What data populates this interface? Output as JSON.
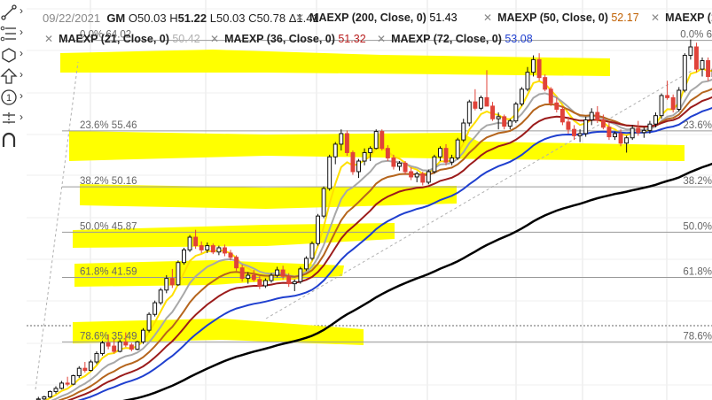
{
  "header": {
    "date": "09/22/2021",
    "symbol": "GM",
    "open_label": "O",
    "open": "50.03",
    "high_label": "H",
    "high": "51.22",
    "low_label": "L",
    "low": "50.03",
    "close_label": "C",
    "close": "50.78",
    "change_label": "Δ",
    "change": "1.41"
  },
  "moving_averages": [
    {
      "name": "MAEXP (200, Close, 0)",
      "value": "51.43",
      "color": "#000000"
    },
    {
      "name": "MAEXP (50, Close, 0)",
      "value": "52.17",
      "color": "#c06000"
    },
    {
      "name": "MAEXP (1",
      "value": "",
      "color": "#a0a0a0"
    },
    {
      "name": "MAEXP (21, Close, 0)",
      "value": "50.42",
      "color": "#b0b0b0"
    },
    {
      "name": "MAEXP (36, Close, 0)",
      "value": "51.32",
      "color": "#b81c1c"
    },
    {
      "name": "MAEXP (72, Close, 0)",
      "value": "53.08",
      "color": "#1f3fcf"
    }
  ],
  "toolbar": {
    "tools": [
      "trendline-icon",
      "fibonacci-icon",
      "shapes-icon",
      "arrow-icon",
      "annotation-icon",
      "measure-icon",
      "magnet-icon"
    ]
  },
  "colors": {
    "highlight": "#ffff00",
    "candle_up": "#111111",
    "candle_down": "#e0433a",
    "fib_line": "#9a9a9a",
    "ma_black": "#000000",
    "ma_blue": "#1f3fcf",
    "ma_darkred": "#9b1b1b",
    "ma_brown": "#b5651d",
    "ma_gray": "#a8a8a8",
    "ma_yellow": "#ffe000"
  },
  "chart_data": {
    "type": "candlestick",
    "ylim": [
      30,
      67
    ],
    "fib_levels": [
      {
        "left_label": "0.0% 64.02",
        "right_label": "0.0% 6",
        "value": 64.02
      },
      {
        "left_label": "23.6% 55.46",
        "right_label": "23.6%",
        "value": 55.46
      },
      {
        "left_label": "38.2% 50.16",
        "right_label": "38.2%",
        "value": 50.16
      },
      {
        "left_label": "50.0% 45.87",
        "right_label": "50.0%",
        "value": 45.87
      },
      {
        "left_label": "61.8% 41.59",
        "right_label": "61.8%",
        "value": 41.59
      },
      {
        "left_label": "78.6% 35.49",
        "right_label": "78.6%",
        "value": 35.49
      }
    ],
    "candles": [
      [
        30.0,
        30.3,
        29.9,
        30.1
      ],
      [
        30.1,
        30.4,
        30.0,
        30.3
      ],
      [
        30.3,
        30.9,
        30.2,
        30.8
      ],
      [
        30.8,
        31.3,
        30.6,
        31.1
      ],
      [
        31.1,
        31.8,
        31.0,
        31.6
      ],
      [
        31.6,
        32.2,
        31.3,
        31.5
      ],
      [
        31.5,
        32.4,
        31.4,
        32.3
      ],
      [
        32.3,
        33.2,
        32.1,
        33.0
      ],
      [
        33.0,
        33.6,
        32.6,
        32.8
      ],
      [
        32.8,
        33.8,
        32.7,
        33.6
      ],
      [
        33.6,
        34.6,
        33.4,
        34.4
      ],
      [
        34.4,
        35.6,
        34.2,
        35.4
      ],
      [
        35.4,
        36.2,
        34.8,
        35.1
      ],
      [
        35.1,
        35.8,
        34.4,
        34.6
      ],
      [
        34.6,
        35.7,
        34.5,
        35.5
      ],
      [
        35.5,
        36.4,
        35.0,
        35.2
      ],
      [
        35.2,
        35.4,
        34.6,
        34.8
      ],
      [
        34.8,
        35.6,
        34.7,
        35.5
      ],
      [
        35.5,
        36.8,
        35.3,
        36.6
      ],
      [
        36.6,
        38.3,
        36.4,
        38.1
      ],
      [
        38.1,
        39.4,
        37.9,
        39.2
      ],
      [
        39.2,
        40.6,
        39.0,
        40.4
      ],
      [
        40.4,
        41.8,
        40.1,
        41.5
      ],
      [
        41.5,
        42.4,
        40.6,
        40.9
      ],
      [
        40.9,
        43.2,
        40.8,
        43.0
      ],
      [
        43.0,
        44.4,
        42.8,
        44.2
      ],
      [
        44.2,
        45.6,
        44.0,
        45.4
      ],
      [
        45.4,
        46.1,
        44.3,
        44.6
      ],
      [
        44.6,
        45.0,
        43.9,
        44.2
      ],
      [
        44.2,
        44.9,
        43.9,
        44.6
      ],
      [
        44.6,
        44.8,
        43.8,
        44.0
      ],
      [
        44.0,
        44.6,
        43.7,
        44.4
      ],
      [
        44.4,
        44.7,
        43.6,
        43.9
      ],
      [
        43.9,
        44.2,
        43.2,
        43.5
      ],
      [
        43.5,
        43.7,
        42.2,
        42.5
      ],
      [
        42.5,
        42.8,
        41.2,
        41.5
      ],
      [
        41.5,
        42.1,
        41.0,
        41.8
      ],
      [
        41.8,
        42.3,
        41.2,
        41.4
      ],
      [
        41.4,
        41.7,
        40.5,
        40.8
      ],
      [
        40.8,
        41.5,
        40.6,
        41.3
      ],
      [
        41.3,
        42.0,
        41.1,
        41.8
      ],
      [
        41.8,
        42.6,
        41.6,
        42.3
      ],
      [
        42.3,
        42.7,
        41.4,
        41.7
      ],
      [
        41.7,
        42.0,
        40.7,
        41.0
      ],
      [
        41.0,
        41.4,
        40.3,
        41.2
      ],
      [
        41.2,
        42.6,
        41.0,
        42.4
      ],
      [
        42.4,
        43.6,
        42.2,
        43.4
      ],
      [
        43.4,
        45.0,
        43.2,
        44.8
      ],
      [
        44.8,
        47.6,
        44.6,
        47.4
      ],
      [
        47.4,
        50.2,
        47.2,
        50.0
      ],
      [
        50.0,
        53.2,
        49.8,
        53.0
      ],
      [
        53.0,
        54.4,
        52.3,
        54.2
      ],
      [
        54.2,
        55.6,
        53.6,
        55.2
      ],
      [
        55.2,
        55.5,
        53.1,
        53.4
      ],
      [
        53.4,
        53.6,
        51.3,
        51.6
      ],
      [
        51.6,
        52.8,
        51.0,
        52.6
      ],
      [
        52.6,
        53.8,
        52.2,
        53.4
      ],
      [
        53.4,
        54.0,
        52.6,
        53.8
      ],
      [
        53.8,
        55.6,
        53.7,
        55.4
      ],
      [
        55.4,
        55.6,
        53.6,
        53.8
      ],
      [
        53.8,
        54.1,
        52.6,
        52.9
      ],
      [
        52.9,
        53.2,
        51.8,
        52.1
      ],
      [
        52.1,
        52.6,
        51.7,
        52.4
      ],
      [
        52.4,
        52.6,
        51.3,
        51.6
      ],
      [
        51.6,
        52.0,
        50.8,
        51.1
      ],
      [
        51.1,
        51.6,
        50.6,
        51.4
      ],
      [
        51.4,
        51.6,
        50.3,
        50.6
      ],
      [
        50.6,
        51.8,
        50.4,
        51.6
      ],
      [
        51.6,
        53.2,
        51.4,
        53.0
      ],
      [
        53.0,
        54.0,
        52.6,
        53.8
      ],
      [
        53.8,
        54.2,
        52.2,
        52.5
      ],
      [
        52.5,
        53.2,
        52.2,
        52.9
      ],
      [
        52.9,
        54.8,
        52.7,
        54.6
      ],
      [
        54.6,
        56.6,
        54.4,
        56.2
      ],
      [
        56.2,
        58.4,
        55.9,
        58.2
      ],
      [
        58.2,
        59.4,
        57.4,
        57.6
      ],
      [
        57.6,
        58.8,
        57.4,
        58.6
      ],
      [
        58.6,
        61.2,
        57.9,
        57.8
      ],
      [
        57.8,
        58.2,
        56.4,
        56.6
      ],
      [
        56.6,
        57.2,
        55.6,
        56.8
      ],
      [
        56.8,
        57.0,
        55.6,
        55.9
      ],
      [
        55.9,
        56.6,
        55.6,
        56.4
      ],
      [
        56.4,
        58.2,
        56.2,
        58.0
      ],
      [
        58.0,
        59.6,
        57.8,
        59.4
      ],
      [
        59.4,
        61.5,
        59.2,
        61.0
      ],
      [
        61.0,
        62.6,
        60.6,
        62.2
      ],
      [
        62.2,
        62.8,
        60.2,
        60.5
      ],
      [
        60.5,
        60.8,
        59.2,
        59.4
      ],
      [
        59.4,
        59.6,
        57.8,
        58.1
      ],
      [
        58.1,
        58.6,
        57.2,
        57.5
      ],
      [
        57.5,
        57.8,
        56.0,
        56.3
      ],
      [
        56.3,
        56.8,
        55.2,
        55.6
      ],
      [
        55.6,
        56.0,
        54.6,
        55.0
      ],
      [
        55.0,
        55.6,
        54.4,
        55.2
      ],
      [
        55.2,
        56.8,
        54.9,
        56.5
      ],
      [
        56.5,
        57.6,
        56.0,
        57.2
      ],
      [
        57.2,
        57.8,
        56.2,
        56.5
      ],
      [
        56.5,
        57.0,
        55.6,
        55.8
      ],
      [
        55.8,
        56.2,
        54.6,
        54.9
      ],
      [
        54.9,
        55.4,
        54.6,
        55.2
      ],
      [
        55.2,
        55.6,
        54.0,
        54.3
      ],
      [
        54.3,
        55.0,
        53.4,
        54.8
      ],
      [
        54.8,
        56.0,
        54.6,
        55.7
      ],
      [
        55.7,
        56.4,
        55.0,
        55.3
      ],
      [
        55.3,
        55.8,
        54.8,
        55.5
      ],
      [
        55.5,
        56.4,
        55.2,
        56.1
      ],
      [
        56.1,
        57.2,
        55.8,
        56.9
      ],
      [
        56.9,
        59.0,
        56.6,
        58.8
      ],
      [
        58.8,
        60.2,
        58.4,
        58.6
      ],
      [
        58.6,
        58.9,
        57.2,
        57.5
      ],
      [
        57.5,
        59.6,
        57.3,
        59.3
      ],
      [
        59.3,
        62.8,
        59.1,
        62.6
      ],
      [
        62.6,
        64.1,
        62.2,
        63.4
      ],
      [
        63.4,
        63.8,
        61.0,
        61.3
      ],
      [
        61.3,
        62.4,
        60.6,
        62.1
      ],
      [
        62.1,
        62.4,
        60.2,
        60.6
      ],
      [
        60.6,
        61.6,
        60.2,
        61.3
      ],
      [
        61.3,
        61.6,
        59.6,
        60.0
      ]
    ]
  }
}
